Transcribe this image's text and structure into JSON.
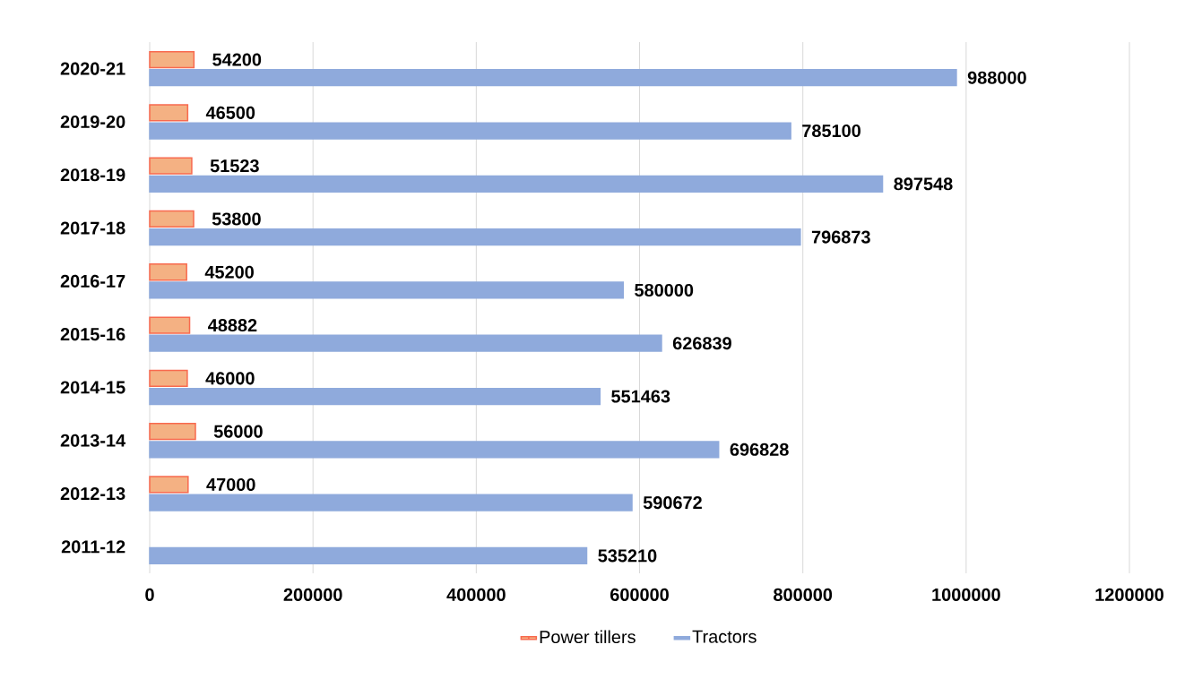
{
  "chart_data": {
    "type": "bar",
    "orientation": "horizontal",
    "categories": [
      "2020-21",
      "2019-20",
      "2018-19",
      "2017-18",
      "2016-17",
      "2015-16",
      "2014-15",
      "2013-14",
      "2012-13",
      "2011-12"
    ],
    "series": [
      {
        "name": "Power tillers",
        "color": "#f4b183",
        "values": [
          54200,
          46500,
          51523,
          53800,
          45200,
          48882,
          46000,
          56000,
          47000,
          null
        ]
      },
      {
        "name": "Tractors",
        "color": "#8faadc",
        "values": [
          988000,
          785100,
          897548,
          796873,
          580000,
          626839,
          551463,
          696828,
          590672,
          535210
        ]
      }
    ],
    "xlim": [
      0,
      1200000
    ],
    "xticks": [
      0,
      200000,
      400000,
      600000,
      800000,
      1000000,
      1200000
    ],
    "grid": "x",
    "legend": "bottom",
    "data_labels": true
  }
}
